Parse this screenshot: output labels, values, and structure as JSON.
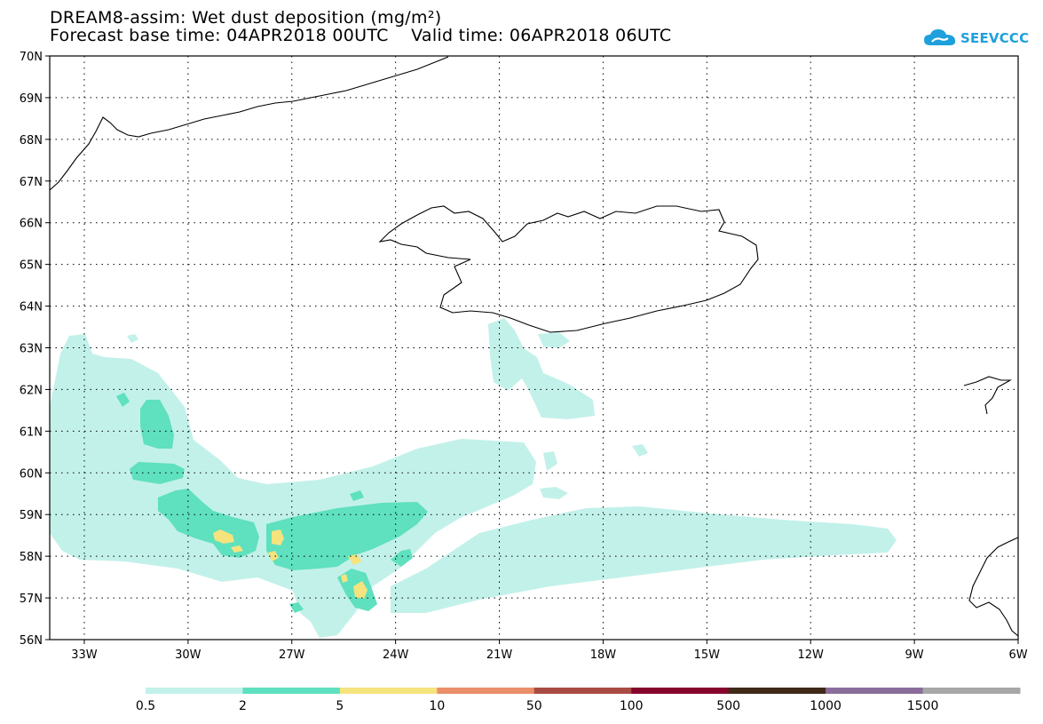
{
  "title": {
    "line1": "DREAM8-assim: Wet dust deposition (mg/m²)",
    "line2": "Forecast base time: 04APR2018 00UTC    Valid time: 06APR2018 06UTC"
  },
  "logo": {
    "text": "SEEVCCC",
    "icon": "cloud-icon",
    "color": "#1ea0dc"
  },
  "map": {
    "lon_range": [
      -34,
      -6
    ],
    "lat_range": [
      56,
      70
    ],
    "lat_labels": [
      "56N",
      "57N",
      "58N",
      "59N",
      "60N",
      "61N",
      "62N",
      "63N",
      "64N",
      "65N",
      "66N",
      "67N",
      "68N",
      "69N",
      "70N"
    ],
    "lon_labels": [
      "33W",
      "30W",
      "27W",
      "24W",
      "21W",
      "18W",
      "15W",
      "12W",
      "9W",
      "6W"
    ],
    "gridlines": "dotted"
  },
  "colorbar": {
    "labels": [
      "0.5",
      "2",
      "5",
      "10",
      "50",
      "100",
      "500",
      "1000",
      "1500"
    ],
    "colors": [
      "#c2f1ea",
      "#5fe0be",
      "#f5e37e",
      "#ea8f6a",
      "#a84c43",
      "#86052d",
      "#3f2a18",
      "#8a6d9a",
      "#a7a7a7"
    ]
  }
}
